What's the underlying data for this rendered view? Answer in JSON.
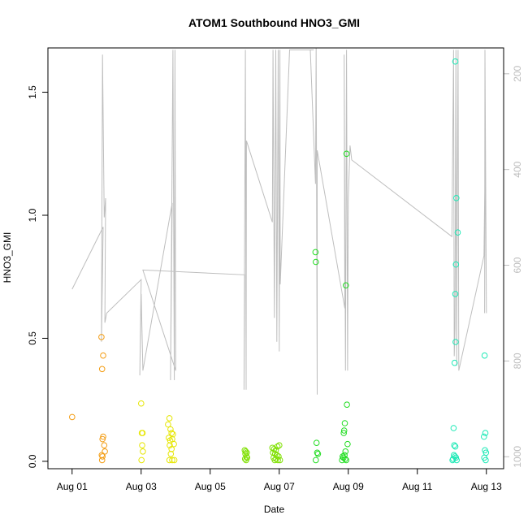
{
  "chart_data": {
    "type": "scatter",
    "title": "ATOM1 Southbound HNO3_GMI",
    "xlabel": "Date",
    "ylabel": "HNO3_GMI",
    "x_start": "2016-08-01",
    "xlim": [
      -0.7,
      12.5
    ],
    "ylim": [
      -0.03,
      1.68
    ],
    "xticks": [
      {
        "day": 0,
        "label": "Aug 01"
      },
      {
        "day": 2,
        "label": "Aug 03"
      },
      {
        "day": 4,
        "label": "Aug 05"
      },
      {
        "day": 6,
        "label": "Aug 07"
      },
      {
        "day": 8,
        "label": "Aug 09"
      },
      {
        "day": 10,
        "label": "Aug 11"
      },
      {
        "day": 12,
        "label": "Aug 13"
      }
    ],
    "yticks": [
      0.0,
      0.5,
      1.0,
      1.5
    ],
    "ytick_labels": [
      "0.0",
      "0.5",
      "1.0",
      "1.5"
    ],
    "right_axis": {
      "color": "#bdbdbd",
      "inverted": true,
      "lim": [
        1025,
        146
      ],
      "ticks": [
        200,
        400,
        600,
        800,
        1000
      ],
      "tick_labels": [
        "200",
        "400",
        "600",
        "800",
        "1000"
      ]
    },
    "series": [
      {
        "color": "#f39c12",
        "points": [
          [
            0.0,
            0.18
          ],
          [
            0.85,
            0.505
          ],
          [
            0.87,
            0.375
          ],
          [
            0.9,
            0.43
          ],
          [
            0.88,
            0.09
          ],
          [
            0.9,
            0.1
          ],
          [
            0.93,
            0.065
          ],
          [
            0.95,
            0.04
          ],
          [
            0.86,
            0.025
          ],
          [
            0.88,
            0.02
          ],
          [
            0.87,
            0.005
          ]
        ]
      },
      {
        "color": "#e6e600",
        "points": [
          [
            2.0,
            0.235
          ],
          [
            2.02,
            0.115
          ],
          [
            2.04,
            0.115
          ],
          [
            2.03,
            0.065
          ],
          [
            2.05,
            0.04
          ],
          [
            2.01,
            0.005
          ],
          [
            2.78,
            0.15
          ],
          [
            2.82,
            0.175
          ],
          [
            2.85,
            0.13
          ],
          [
            2.88,
            0.115
          ],
          [
            2.92,
            0.11
          ],
          [
            2.8,
            0.095
          ],
          [
            2.84,
            0.085
          ],
          [
            2.9,
            0.09
          ],
          [
            2.95,
            0.07
          ],
          [
            2.83,
            0.065
          ],
          [
            2.88,
            0.05
          ],
          [
            2.86,
            0.03
          ],
          [
            2.82,
            0.005
          ],
          [
            2.9,
            0.005
          ],
          [
            2.96,
            0.005
          ]
        ]
      },
      {
        "color": "#7fe000",
        "points": [
          [
            5.0,
            0.045
          ],
          [
            5.03,
            0.04
          ],
          [
            5.06,
            0.035
          ],
          [
            5.02,
            0.03
          ],
          [
            5.05,
            0.02
          ],
          [
            5.07,
            0.015
          ],
          [
            5.01,
            0.01
          ],
          [
            5.04,
            0.005
          ],
          [
            5.8,
            0.055
          ],
          [
            5.85,
            0.05
          ],
          [
            5.9,
            0.045
          ],
          [
            5.95,
            0.06
          ],
          [
            6.0,
            0.065
          ],
          [
            5.82,
            0.035
          ],
          [
            5.88,
            0.03
          ],
          [
            5.93,
            0.025
          ],
          [
            5.98,
            0.02
          ],
          [
            5.84,
            0.015
          ],
          [
            5.91,
            0.01
          ],
          [
            5.96,
            0.005
          ],
          [
            6.02,
            0.005
          ],
          [
            5.87,
            0.005
          ]
        ]
      },
      {
        "color": "#22dd22",
        "points": [
          [
            7.05,
            0.85
          ],
          [
            7.06,
            0.81
          ],
          [
            7.08,
            0.075
          ],
          [
            7.1,
            0.035
          ],
          [
            7.12,
            0.03
          ],
          [
            7.06,
            0.005
          ],
          [
            7.95,
            1.25
          ],
          [
            7.93,
            0.715
          ],
          [
            7.96,
            0.23
          ],
          [
            7.9,
            0.155
          ],
          [
            7.88,
            0.125
          ],
          [
            7.87,
            0.115
          ],
          [
            7.98,
            0.07
          ],
          [
            7.92,
            0.04
          ],
          [
            7.89,
            0.025
          ],
          [
            7.84,
            0.02
          ],
          [
            7.86,
            0.015
          ],
          [
            7.91,
            0.01
          ],
          [
            7.94,
            0.005
          ],
          [
            7.82,
            0.005
          ]
        ]
      },
      {
        "color": "#1de9b6",
        "points": [
          [
            11.1,
            1.625
          ],
          [
            11.13,
            1.07
          ],
          [
            11.17,
            0.93
          ],
          [
            11.12,
            0.8
          ],
          [
            11.1,
            0.68
          ],
          [
            11.11,
            0.485
          ],
          [
            11.08,
            0.4
          ],
          [
            11.05,
            0.135
          ],
          [
            11.07,
            0.065
          ],
          [
            11.1,
            0.06
          ],
          [
            11.06,
            0.025
          ],
          [
            11.09,
            0.02
          ],
          [
            11.12,
            0.015
          ],
          [
            11.04,
            0.01
          ],
          [
            11.14,
            0.005
          ],
          [
            11.02,
            0.005
          ],
          [
            11.95,
            0.43
          ],
          [
            11.97,
            0.115
          ],
          [
            11.93,
            0.1
          ],
          [
            11.96,
            0.045
          ],
          [
            11.99,
            0.035
          ],
          [
            11.94,
            0.015
          ],
          [
            11.98,
            0.005
          ]
        ]
      }
    ],
    "pressure_trace": [
      [
        0.0,
        650
      ],
      [
        0.9,
        520
      ],
      [
        0.85,
        760
      ],
      [
        0.88,
        160
      ],
      [
        0.93,
        500
      ],
      [
        0.97,
        460
      ],
      [
        0.95,
        720
      ],
      [
        1.0,
        700
      ],
      [
        2.0,
        630
      ],
      [
        1.96,
        830
      ],
      [
        2.0,
        660
      ],
      [
        2.05,
        820
      ],
      [
        2.9,
        470
      ],
      [
        2.85,
        840
      ],
      [
        2.92,
        150
      ],
      [
        2.96,
        840
      ],
      [
        2.98,
        150
      ],
      [
        3.0,
        820
      ],
      [
        2.05,
        610
      ],
      [
        5.0,
        620
      ],
      [
        4.98,
        860
      ],
      [
        5.02,
        150
      ],
      [
        5.04,
        860
      ],
      [
        5.05,
        340
      ],
      [
        5.8,
        510
      ],
      [
        5.82,
        150
      ],
      [
        5.86,
        710
      ],
      [
        5.9,
        150
      ],
      [
        5.93,
        760
      ],
      [
        5.97,
        150
      ],
      [
        6.0,
        780
      ],
      [
        6.02,
        150
      ],
      [
        6.03,
        640
      ],
      [
        6.3,
        150
      ],
      [
        7.0,
        150
      ],
      [
        6.9,
        150
      ],
      [
        7.05,
        430
      ],
      [
        7.07,
        140
      ],
      [
        7.1,
        870
      ],
      [
        7.1,
        360
      ],
      [
        7.9,
        690
      ],
      [
        7.88,
        160
      ],
      [
        7.92,
        820
      ],
      [
        7.95,
        150
      ],
      [
        7.98,
        820
      ],
      [
        8.0,
        460
      ],
      [
        8.05,
        350
      ],
      [
        8.1,
        380
      ],
      [
        11.0,
        540
      ],
      [
        11.05,
        150
      ],
      [
        11.07,
        790
      ],
      [
        11.09,
        730
      ],
      [
        11.12,
        150
      ],
      [
        11.14,
        810
      ],
      [
        11.16,
        450
      ],
      [
        11.18,
        150
      ],
      [
        11.2,
        820
      ],
      [
        11.93,
        580
      ],
      [
        11.97,
        340
      ],
      [
        11.95,
        700
      ],
      [
        11.96,
        150
      ],
      [
        12.0,
        700
      ]
    ]
  }
}
